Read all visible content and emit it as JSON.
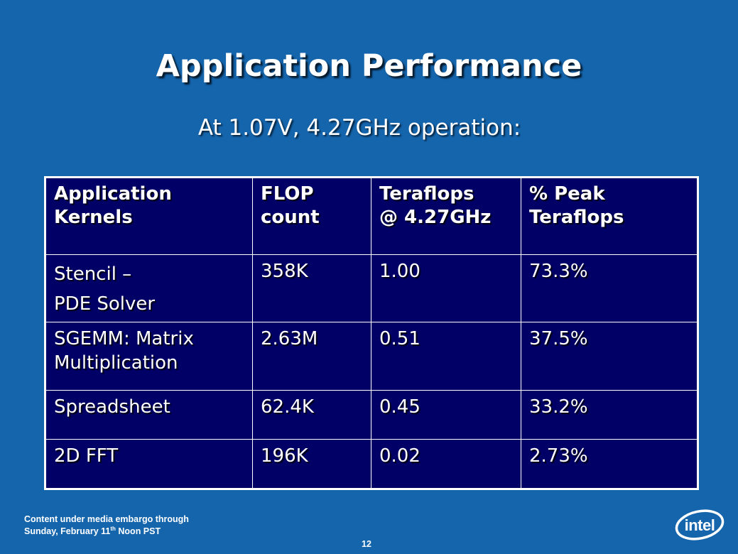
{
  "slide": {
    "title": "Application Performance",
    "subtitle": "At 1.07V, 4.27GHz operation:"
  },
  "table": {
    "headers": [
      "Application\nKernels",
      "FLOP\ncount",
      "Teraflops\n @ 4.27GHz",
      "% Peak\nTeraflops"
    ],
    "rows": [
      [
        "Stencil –\nPDE Solver",
        "358K",
        "1.00",
        "73.3%"
      ],
      [
        "SGEMM: Matrix\nMultiplication",
        "2.63M",
        "0.51",
        "37.5%"
      ],
      [
        "Spreadsheet",
        "62.4K",
        "0.45",
        "33.2%"
      ],
      [
        "2D FFT",
        "196K",
        "0.02",
        "2.73%"
      ]
    ]
  },
  "footer": {
    "embargo_line1": "Content under media embargo through",
    "embargo_line2_prefix": "Sunday, February 11",
    "embargo_line2_sup": "th",
    "embargo_line2_suffix": " Noon PST",
    "page_number": "12",
    "logo_text": "intel",
    "logo_icon": "intel-logo"
  },
  "colors": {
    "background": "#1565ad",
    "table_background": "#000066",
    "text": "#ffffff"
  }
}
